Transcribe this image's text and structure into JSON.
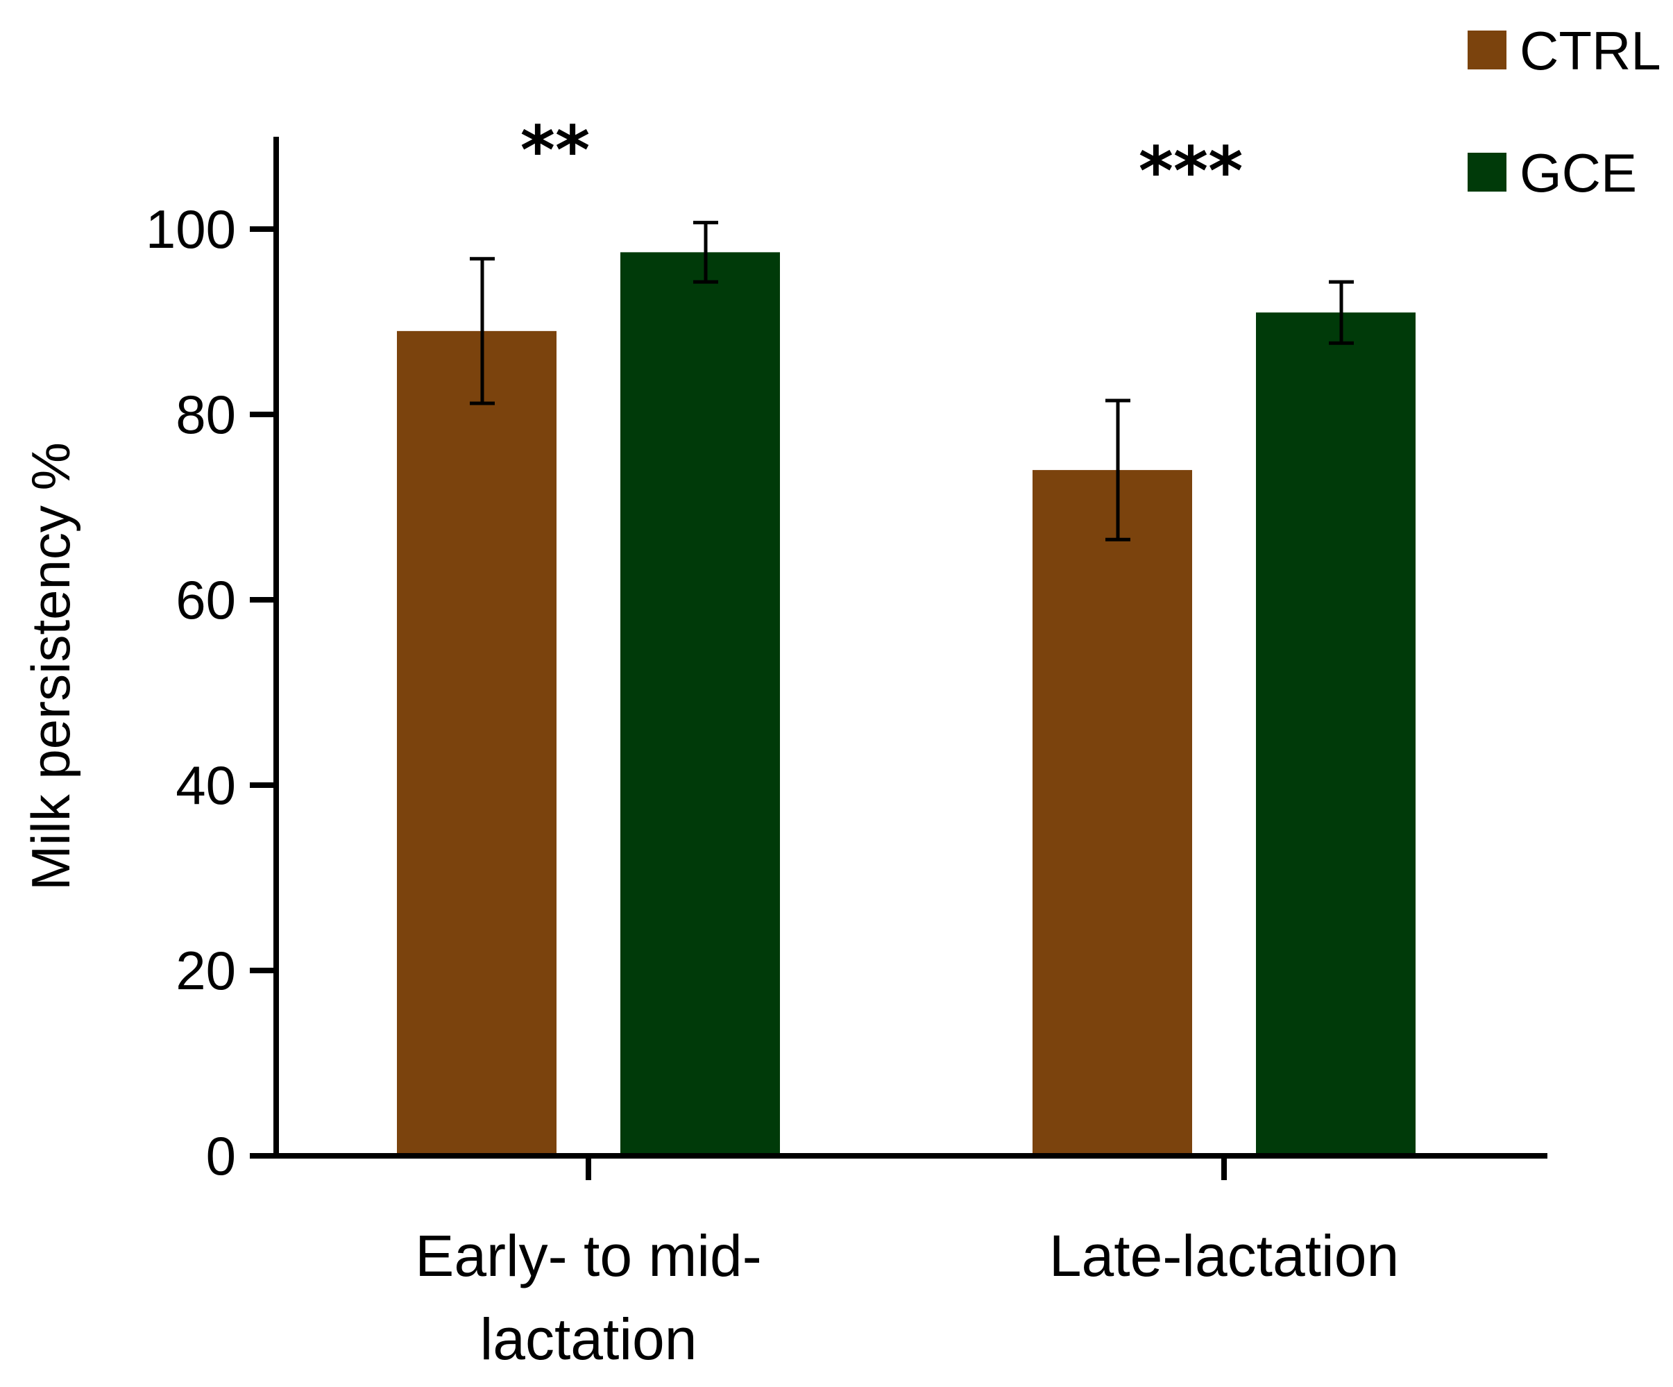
{
  "chart_data": {
    "type": "bar",
    "title": "",
    "xlabel": "",
    "ylabel": "Milk persistency %",
    "ylim": [
      0,
      110
    ],
    "yticks": [
      0,
      20,
      40,
      60,
      80,
      100
    ],
    "categories": [
      "Early- to mid-\nlactation",
      "Late-lactation"
    ],
    "category_lines": [
      [
        "Early- to mid-",
        "lactation"
      ],
      [
        "Late-lactation"
      ]
    ],
    "series": [
      {
        "name": "CTRL",
        "color": "#7b430d",
        "values": [
          89,
          74
        ],
        "error": [
          7.8,
          7.5
        ]
      },
      {
        "name": "GCE",
        "color": "#003a09",
        "values": [
          97.5,
          91
        ],
        "error": [
          3.2,
          3.3
        ]
      }
    ],
    "significance": [
      "**",
      "***"
    ],
    "legend_position": "top-right",
    "grid": false
  }
}
